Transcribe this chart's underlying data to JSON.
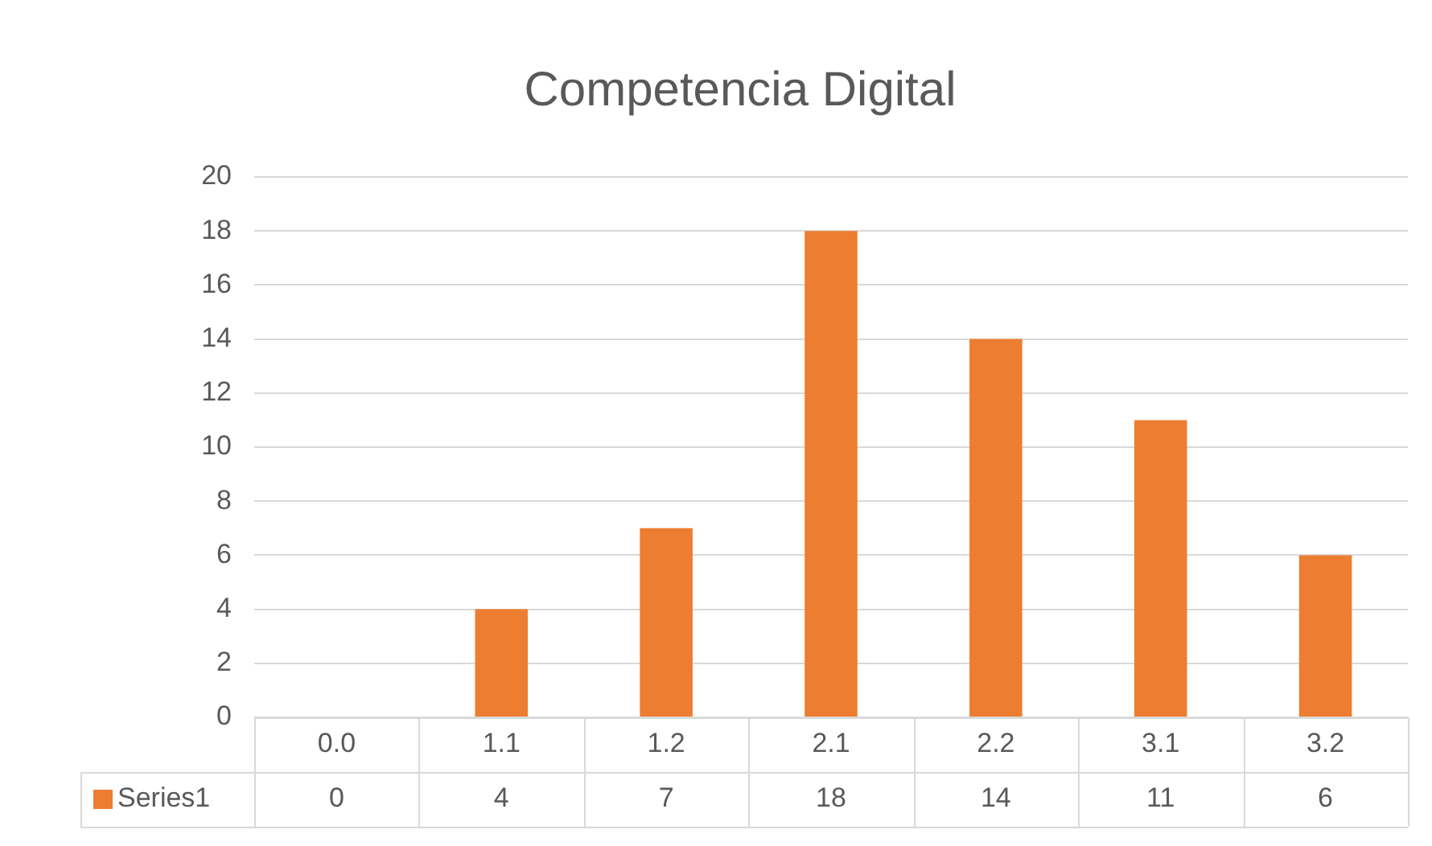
{
  "chart_data": {
    "type": "bar",
    "title": "Competencia Digital",
    "categories": [
      "0.0",
      "1.1",
      "1.2",
      "2.1",
      "2.2",
      "3.1",
      "3.2"
    ],
    "series": [
      {
        "name": "Series1",
        "color": "#ed7d31",
        "values": [
          0,
          4,
          7,
          18,
          14,
          11,
          6
        ]
      }
    ],
    "ylim": [
      0,
      20
    ],
    "yticks": [
      0,
      2,
      4,
      6,
      8,
      10,
      12,
      14,
      16,
      18,
      20
    ],
    "grid": "y",
    "legend": "bottom",
    "data_labels": true
  }
}
